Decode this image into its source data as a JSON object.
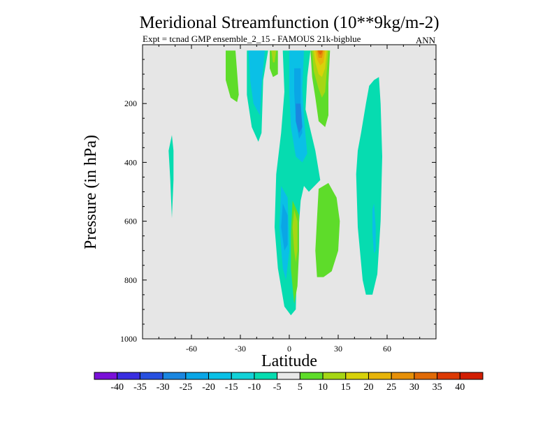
{
  "chart_data": {
    "type": "contour",
    "title": "Meridional Streamfunction (10**9kg/m-2)",
    "subtitle_left": "Expt = tcnad GMP ensemble_2_15 - FAMOUS 21k-bigblue",
    "subtitle_right": "ANN",
    "xlabel": "Latitude",
    "ylabel": "Pressure (in hPa)",
    "xlim": [
      -90,
      90
    ],
    "ylim": [
      1000,
      0
    ],
    "x_ticks": [
      {
        "value": -60,
        "label": "-60"
      },
      {
        "value": -30,
        "label": "-30"
      },
      {
        "value": 0,
        "label": "0"
      },
      {
        "value": 30,
        "label": "30"
      },
      {
        "value": 60,
        "label": "60"
      }
    ],
    "y_ticks": [
      {
        "value": 200,
        "label": "200"
      },
      {
        "value": 400,
        "label": "400"
      },
      {
        "value": 600,
        "label": "600"
      },
      {
        "value": 800,
        "label": "800"
      },
      {
        "value": 1000,
        "label": "1000"
      }
    ],
    "background_color": "#e6e6e6",
    "colorbar": {
      "levels": [
        {
          "label": "-40",
          "color": "#7a10d8"
        },
        {
          "label": "-35",
          "color": "#3a2ee0"
        },
        {
          "label": "-30",
          "color": "#2850e0"
        },
        {
          "label": "-25",
          "color": "#1a86e0"
        },
        {
          "label": "-20",
          "color": "#0aa6e6"
        },
        {
          "label": "-15",
          "color": "#0ac0e6"
        },
        {
          "label": "-10",
          "color": "#12d2d8"
        },
        {
          "label": "-5",
          "color": "#06dcb0"
        },
        {
          "label": "5",
          "color": "#e8e8e8"
        },
        {
          "label": "10",
          "color": "#5edc2a"
        },
        {
          "label": "15",
          "color": "#a6d614"
        },
        {
          "label": "20",
          "color": "#d8d20a"
        },
        {
          "label": "25",
          "color": "#e6b40a"
        },
        {
          "label": "30",
          "color": "#e69008"
        },
        {
          "label": "35",
          "color": "#e06a06"
        },
        {
          "label": "40",
          "color": "#dc3a04"
        },
        {
          "label": "",
          "color": "#d21e02"
        }
      ]
    },
    "regions": [
      {
        "level": "-10",
        "color": "#06dcb0",
        "points": [
          [
            -72,
            307
          ],
          [
            -71,
            360
          ],
          [
            -71,
            460
          ],
          [
            -72,
            590
          ],
          [
            -73,
            460
          ],
          [
            -74,
            360
          ]
        ]
      },
      {
        "level": "10",
        "color": "#5edc2a",
        "points": [
          [
            -39,
            20
          ],
          [
            -33,
            20
          ],
          [
            -31,
            170
          ],
          [
            -32,
            195
          ],
          [
            -36,
            180
          ],
          [
            -39,
            120
          ]
        ]
      },
      {
        "level": "-10",
        "color": "#06dcb0",
        "points": [
          [
            -26,
            20
          ],
          [
            -13,
            20
          ],
          [
            -16,
            120
          ],
          [
            -17,
            300
          ],
          [
            -19,
            330
          ],
          [
            -23,
            280
          ],
          [
            -26,
            170
          ]
        ]
      },
      {
        "level": "-15",
        "color": "#0ac0e6",
        "points": [
          [
            -25,
            20
          ],
          [
            -15,
            20
          ],
          [
            -17,
            140
          ],
          [
            -18,
            240
          ],
          [
            -22,
            200
          ],
          [
            -24,
            120
          ]
        ]
      },
      {
        "level": "10",
        "color": "#5edc2a",
        "points": [
          [
            -12,
            20
          ],
          [
            -7,
            20
          ],
          [
            -7,
            100
          ],
          [
            -10,
            110
          ],
          [
            -12,
            80
          ]
        ]
      },
      {
        "level": "15",
        "color": "#a6d614",
        "points": [
          [
            -11,
            20
          ],
          [
            -8,
            20
          ],
          [
            -9,
            60
          ],
          [
            -10,
            60
          ]
        ]
      },
      {
        "level": "-10",
        "color": "#06dcb0",
        "points": [
          [
            -4,
            20
          ],
          [
            13,
            20
          ],
          [
            11,
            110
          ],
          [
            10,
            220
          ],
          [
            16,
            360
          ],
          [
            19,
            460
          ],
          [
            12,
            500
          ],
          [
            9,
            480
          ],
          [
            7,
            530
          ],
          [
            5,
            680
          ],
          [
            4,
            900
          ],
          [
            1,
            920
          ],
          [
            -3,
            890
          ],
          [
            -7,
            760
          ],
          [
            -9,
            620
          ],
          [
            -8,
            440
          ],
          [
            -5,
            300
          ],
          [
            -3,
            160
          ]
        ]
      },
      {
        "level": "-15",
        "color": "#0ac0e6",
        "points": [
          [
            0,
            20
          ],
          [
            9,
            20
          ],
          [
            8,
            150
          ],
          [
            9,
            250
          ],
          [
            11,
            370
          ],
          [
            8,
            400
          ],
          [
            4,
            380
          ],
          [
            1,
            280
          ],
          [
            0,
            160
          ]
        ]
      },
      {
        "level": "-20",
        "color": "#0aa6e6",
        "points": [
          [
            3,
            80
          ],
          [
            7,
            80
          ],
          [
            7,
            200
          ],
          [
            8,
            300
          ],
          [
            6,
            320
          ],
          [
            4,
            260
          ],
          [
            3,
            160
          ]
        ]
      },
      {
        "level": "-25",
        "color": "#1a86e0",
        "points": [
          [
            4,
            200
          ],
          [
            7,
            200
          ],
          [
            8,
            280
          ],
          [
            6,
            300
          ],
          [
            4,
            260
          ]
        ]
      },
      {
        "level": "-15",
        "color": "#0ac0e6",
        "points": [
          [
            -5,
            480
          ],
          [
            -1,
            520
          ],
          [
            0,
            700
          ],
          [
            -2,
            800
          ],
          [
            -4,
            760
          ],
          [
            -6,
            620
          ]
        ]
      },
      {
        "level": "-20",
        "color": "#0aa6e6",
        "points": [
          [
            -4,
            540
          ],
          [
            -1,
            580
          ],
          [
            -1,
            680
          ],
          [
            -3,
            700
          ],
          [
            -5,
            620
          ]
        ]
      },
      {
        "level": "10",
        "color": "#5edc2a",
        "points": [
          [
            2,
            530
          ],
          [
            6,
            580
          ],
          [
            6,
            700
          ],
          [
            5,
            820
          ],
          [
            3,
            880
          ],
          [
            1,
            760
          ],
          [
            1,
            640
          ]
        ]
      },
      {
        "level": "15",
        "color": "#a6d614",
        "points": [
          [
            3,
            560
          ],
          [
            5,
            600
          ],
          [
            5,
            700
          ],
          [
            4,
            740
          ],
          [
            3,
            700
          ],
          [
            2,
            620
          ]
        ]
      },
      {
        "level": "10",
        "color": "#5edc2a",
        "points": [
          [
            13,
            20
          ],
          [
            25,
            20
          ],
          [
            24,
            130
          ],
          [
            24,
            240
          ],
          [
            22,
            280
          ],
          [
            18,
            260
          ],
          [
            16,
            180
          ],
          [
            14,
            110
          ]
        ]
      },
      {
        "level": "15",
        "color": "#a6d614",
        "points": [
          [
            14,
            20
          ],
          [
            24,
            20
          ],
          [
            23,
            90
          ],
          [
            22,
            160
          ],
          [
            20,
            180
          ],
          [
            18,
            150
          ],
          [
            15,
            90
          ]
        ]
      },
      {
        "level": "20",
        "color": "#d8d20a",
        "points": [
          [
            15,
            20
          ],
          [
            23,
            20
          ],
          [
            22,
            80
          ],
          [
            20,
            110
          ],
          [
            18,
            100
          ],
          [
            16,
            60
          ]
        ]
      },
      {
        "level": "25",
        "color": "#e6b40a",
        "points": [
          [
            16,
            20
          ],
          [
            22,
            20
          ],
          [
            21,
            60
          ],
          [
            19,
            70
          ],
          [
            17,
            50
          ]
        ]
      },
      {
        "level": "30",
        "color": "#e69008",
        "points": [
          [
            17,
            20
          ],
          [
            21,
            20
          ],
          [
            20,
            45
          ],
          [
            18,
            45
          ]
        ]
      },
      {
        "level": "35",
        "color": "#e06a06",
        "points": [
          [
            17.5,
            20
          ],
          [
            20.5,
            20
          ],
          [
            19.5,
            33
          ],
          [
            18.5,
            33
          ]
        ]
      },
      {
        "level": "10",
        "color": "#5edc2a",
        "points": [
          [
            18,
            490
          ],
          [
            24,
            470
          ],
          [
            29,
            520
          ],
          [
            31,
            600
          ],
          [
            30,
            700
          ],
          [
            26,
            770
          ],
          [
            21,
            790
          ],
          [
            17,
            790
          ],
          [
            16,
            700
          ],
          [
            17,
            590
          ]
        ]
      },
      {
        "level": "-10",
        "color": "#06dcb0",
        "points": [
          [
            44,
            300
          ],
          [
            47,
            200
          ],
          [
            49,
            140
          ],
          [
            52,
            120
          ],
          [
            55,
            110
          ],
          [
            56,
            200
          ],
          [
            57,
            380
          ],
          [
            56,
            600
          ],
          [
            54,
            780
          ],
          [
            51,
            850
          ],
          [
            47,
            850
          ],
          [
            45,
            800
          ],
          [
            42,
            620
          ],
          [
            41,
            440
          ],
          [
            42,
            360
          ]
        ]
      },
      {
        "level": "-15",
        "color": "#0ac0e6",
        "points": [
          [
            52,
            540
          ],
          [
            53,
            620
          ],
          [
            53,
            700
          ],
          [
            52,
            710
          ],
          [
            51,
            640
          ],
          [
            51,
            560
          ]
        ]
      }
    ]
  }
}
